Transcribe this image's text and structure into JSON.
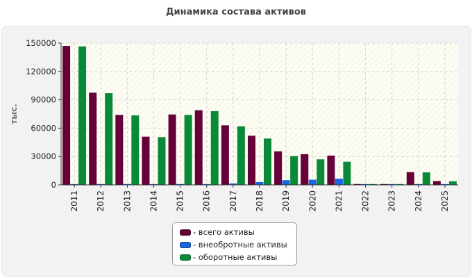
{
  "chart_data": {
    "type": "bar",
    "title": "Динамика состава активов",
    "ylabel": "тыс.",
    "xlabel": "",
    "ylim": [
      0,
      150000
    ],
    "yticks": [
      0,
      30000,
      60000,
      90000,
      120000,
      150000
    ],
    "categories": [
      "2011",
      "2012",
      "2013",
      "2014",
      "2015",
      "2016",
      "2017",
      "2018",
      "2019",
      "2020",
      "2021",
      "2022",
      "2023",
      "2024",
      "2025"
    ],
    "series": [
      {
        "name": "- всего активы",
        "color": "#66003a",
        "values": [
          147000,
          97500,
          74000,
          51000,
          74500,
          79000,
          63000,
          52000,
          35500,
          32500,
          31000,
          800,
          900,
          13500,
          4000
        ]
      },
      {
        "name": "- внеобротные активы",
        "color": "#1a66e0",
        "values": [
          500,
          600,
          700,
          500,
          500,
          600,
          1500,
          3000,
          5000,
          5500,
          6500,
          300,
          300,
          300,
          300
        ]
      },
      {
        "name": "- оборотные активы",
        "color": "#0a8a38",
        "values": [
          146500,
          97000,
          73500,
          50500,
          74000,
          78000,
          62000,
          49000,
          30500,
          27000,
          24500,
          500,
          600,
          13200,
          3800
        ]
      }
    ],
    "grid": true,
    "legend_position": "bottom"
  }
}
